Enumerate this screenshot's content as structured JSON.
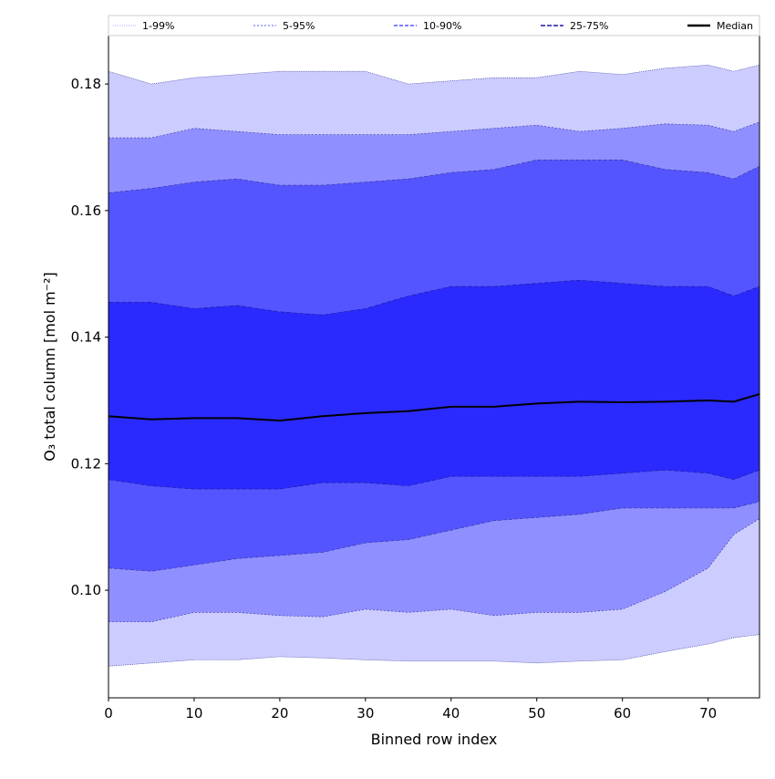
{
  "chart_data": {
    "type": "area",
    "xlabel": "Binned row index",
    "ylabel": "O₃ total column [mol m⁻²]",
    "xlim": [
      0,
      76
    ],
    "ylim": [
      0.083,
      0.1878
    ],
    "xticks": [
      0,
      10,
      20,
      30,
      40,
      50,
      60,
      70
    ],
    "yticks": [
      0.1,
      0.12,
      0.14,
      0.16,
      0.18
    ],
    "ytick_labels": [
      "0.10",
      "0.12",
      "0.14",
      "0.16",
      "0.18"
    ],
    "legend_position": "top",
    "x": [
      0,
      5,
      10,
      15,
      20,
      25,
      30,
      35,
      40,
      45,
      50,
      55,
      60,
      65,
      70,
      73,
      76
    ],
    "bands": [
      {
        "name": "1-99%",
        "color": "#ccccff",
        "lower": [
          0.088,
          0.0885,
          0.089,
          0.089,
          0.0895,
          0.0893,
          0.089,
          0.0888,
          0.0888,
          0.0888,
          0.0885,
          0.0888,
          0.089,
          0.0903,
          0.0915,
          0.0925,
          0.093
        ],
        "upper": [
          0.182,
          0.18,
          0.181,
          0.1815,
          0.182,
          0.182,
          0.182,
          0.18,
          0.1805,
          0.181,
          0.181,
          0.182,
          0.1815,
          0.1825,
          0.183,
          0.182,
          0.183
        ]
      },
      {
        "name": "5-95%",
        "color": "#8f8fff",
        "lower": [
          0.095,
          0.095,
          0.0965,
          0.0965,
          0.096,
          0.0958,
          0.097,
          0.0965,
          0.097,
          0.096,
          0.0965,
          0.0965,
          0.097,
          0.0998,
          0.1035,
          0.1088,
          0.1113
        ],
        "upper": [
          0.1715,
          0.1715,
          0.173,
          0.1725,
          0.172,
          0.172,
          0.172,
          0.172,
          0.1725,
          0.173,
          0.1735,
          0.1725,
          0.173,
          0.1737,
          0.1735,
          0.1725,
          0.174
        ]
      },
      {
        "name": "10-90%",
        "color": "#5555ff",
        "lower": [
          0.1035,
          0.103,
          0.104,
          0.105,
          0.1055,
          0.106,
          0.1075,
          0.108,
          0.1095,
          0.111,
          0.1115,
          0.112,
          0.113,
          0.113,
          0.113,
          0.113,
          0.114
        ],
        "upper": [
          0.1628,
          0.1635,
          0.1645,
          0.165,
          0.164,
          0.164,
          0.1645,
          0.165,
          0.166,
          0.1665,
          0.168,
          0.168,
          0.168,
          0.1665,
          0.166,
          0.165,
          0.167
        ]
      },
      {
        "name": "25-75%",
        "color": "#2a2aff",
        "lower": [
          0.1175,
          0.1165,
          0.116,
          0.116,
          0.116,
          0.117,
          0.117,
          0.1165,
          0.118,
          0.118,
          0.118,
          0.118,
          0.1185,
          0.119,
          0.1185,
          0.1175,
          0.119
        ],
        "upper": [
          0.1455,
          0.1455,
          0.1445,
          0.145,
          0.144,
          0.1435,
          0.1445,
          0.1465,
          0.148,
          0.148,
          0.1485,
          0.149,
          0.1485,
          0.148,
          0.148,
          0.1465,
          0.148
        ]
      }
    ],
    "median": {
      "name": "Median",
      "color": "#000000",
      "values": [
        0.1275,
        0.127,
        0.1272,
        0.1272,
        0.1268,
        0.1275,
        0.128,
        0.1283,
        0.129,
        0.129,
        0.1295,
        0.1298,
        0.1297,
        0.1298,
        0.13,
        0.1298,
        0.131
      ]
    }
  }
}
